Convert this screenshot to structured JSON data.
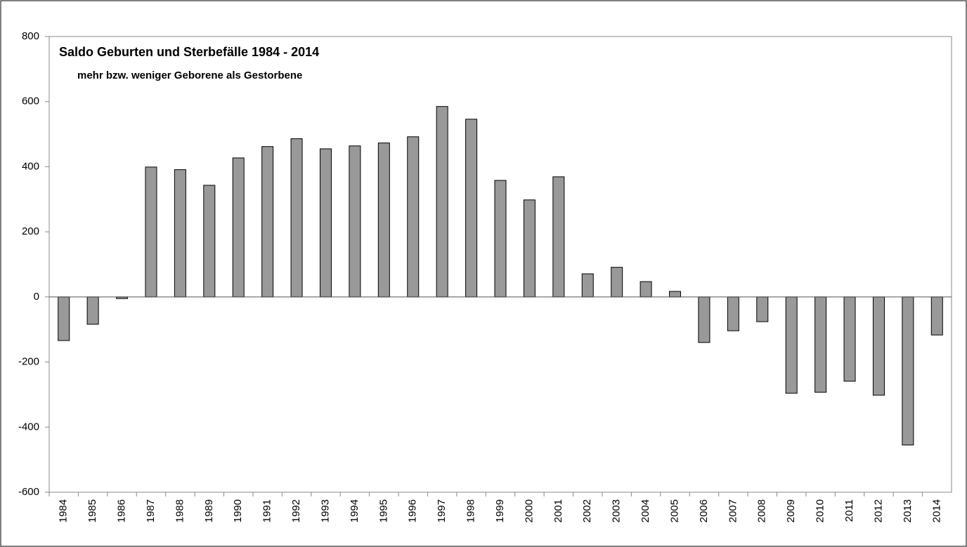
{
  "chart_data": {
    "type": "bar",
    "title": "Saldo Geburten und Sterbefälle 1984 - 2014",
    "subtitle": "mehr bzw. weniger Geborene als Gestorbene",
    "categories": [
      "1984",
      "1985",
      "1986",
      "1987",
      "1988",
      "1989",
      "1990",
      "1991",
      "1992",
      "1993",
      "1994",
      "1995",
      "1996",
      "1997",
      "1998",
      "1999",
      "2000",
      "2001",
      "2002",
      "2003",
      "2004",
      "2005",
      "2006",
      "2007",
      "2008",
      "2009",
      "2010",
      "2011",
      "2012",
      "2013",
      "2014"
    ],
    "values": [
      -134,
      -84,
      -5,
      399,
      391,
      343,
      427,
      462,
      486,
      455,
      464,
      473,
      492,
      585,
      546,
      358,
      298,
      369,
      71,
      91,
      47,
      17,
      -140,
      -104,
      -76,
      -296,
      -293,
      -259,
      -302,
      -455,
      -117
    ],
    "color": "#999999",
    "ylim": [
      -600,
      800
    ],
    "yticks": [
      -600,
      -400,
      -200,
      0,
      200,
      400,
      600,
      800
    ],
    "grid": false
  }
}
